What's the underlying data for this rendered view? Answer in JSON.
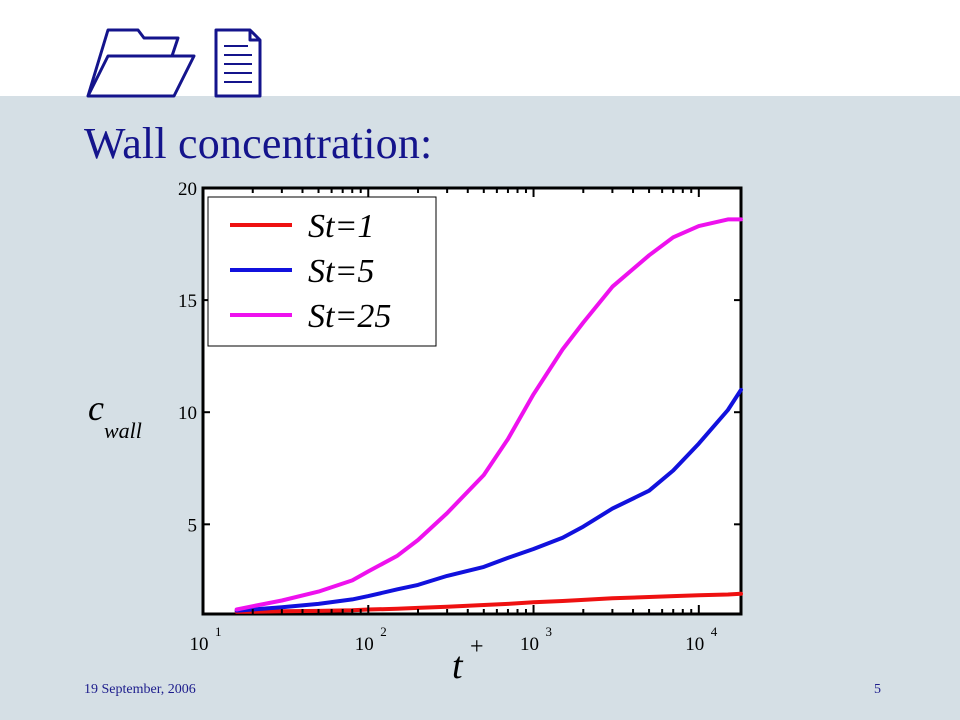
{
  "slide": {
    "title": "Wall concentration:",
    "date": "19 September, 2006",
    "page_number": "5",
    "icons": [
      "folder-icon",
      "document-icon"
    ]
  },
  "chart_data": {
    "type": "line",
    "x_scale": "log",
    "xlim": [
      10,
      18000
    ],
    "ylim": [
      1,
      20
    ],
    "xticks": [
      {
        "value": 10,
        "base": "10",
        "exp": "1"
      },
      {
        "value": 100,
        "base": "10",
        "exp": "2"
      },
      {
        "value": 1000,
        "base": "10",
        "exp": "3"
      },
      {
        "value": 10000,
        "base": "10",
        "exp": "4"
      }
    ],
    "yticks": [
      {
        "value": 5,
        "label": "5"
      },
      {
        "value": 10,
        "label": "10"
      },
      {
        "value": 15,
        "label": "15"
      },
      {
        "value": 20,
        "label": "20"
      }
    ],
    "xlabel": {
      "base": "t",
      "sup": "+"
    },
    "ylabel": {
      "base": "c",
      "sub": "wall"
    },
    "legend_position": "top-left",
    "series": [
      {
        "name": "St=1",
        "color": "#ee1111",
        "x": [
          16,
          20,
          30,
          50,
          80,
          100,
          150,
          200,
          300,
          500,
          700,
          1000,
          1500,
          2000,
          3000,
          5000,
          7000,
          10000,
          15000,
          18000
        ],
        "y": [
          1.1,
          1.1,
          1.12,
          1.14,
          1.17,
          1.2,
          1.23,
          1.27,
          1.32,
          1.4,
          1.45,
          1.52,
          1.58,
          1.63,
          1.7,
          1.76,
          1.8,
          1.84,
          1.87,
          1.9
        ]
      },
      {
        "name": "St=5",
        "color": "#1111dd",
        "x": [
          16,
          20,
          30,
          50,
          80,
          100,
          150,
          200,
          300,
          500,
          700,
          1000,
          1500,
          2000,
          3000,
          5000,
          7000,
          10000,
          15000,
          18000
        ],
        "y": [
          1.15,
          1.2,
          1.3,
          1.45,
          1.65,
          1.8,
          2.1,
          2.3,
          2.7,
          3.1,
          3.5,
          3.9,
          4.4,
          4.9,
          5.7,
          6.5,
          7.4,
          8.6,
          10.1,
          11.0
        ]
      },
      {
        "name": "St=25",
        "color": "#ee11ee",
        "x": [
          16,
          20,
          30,
          50,
          80,
          100,
          150,
          200,
          300,
          500,
          700,
          1000,
          1500,
          2000,
          3000,
          5000,
          7000,
          10000,
          15000,
          18000
        ],
        "y": [
          1.2,
          1.35,
          1.6,
          2.0,
          2.5,
          2.9,
          3.6,
          4.3,
          5.5,
          7.2,
          8.8,
          10.8,
          12.8,
          14.0,
          15.6,
          17.0,
          17.8,
          18.3,
          18.6,
          18.6
        ]
      }
    ]
  }
}
